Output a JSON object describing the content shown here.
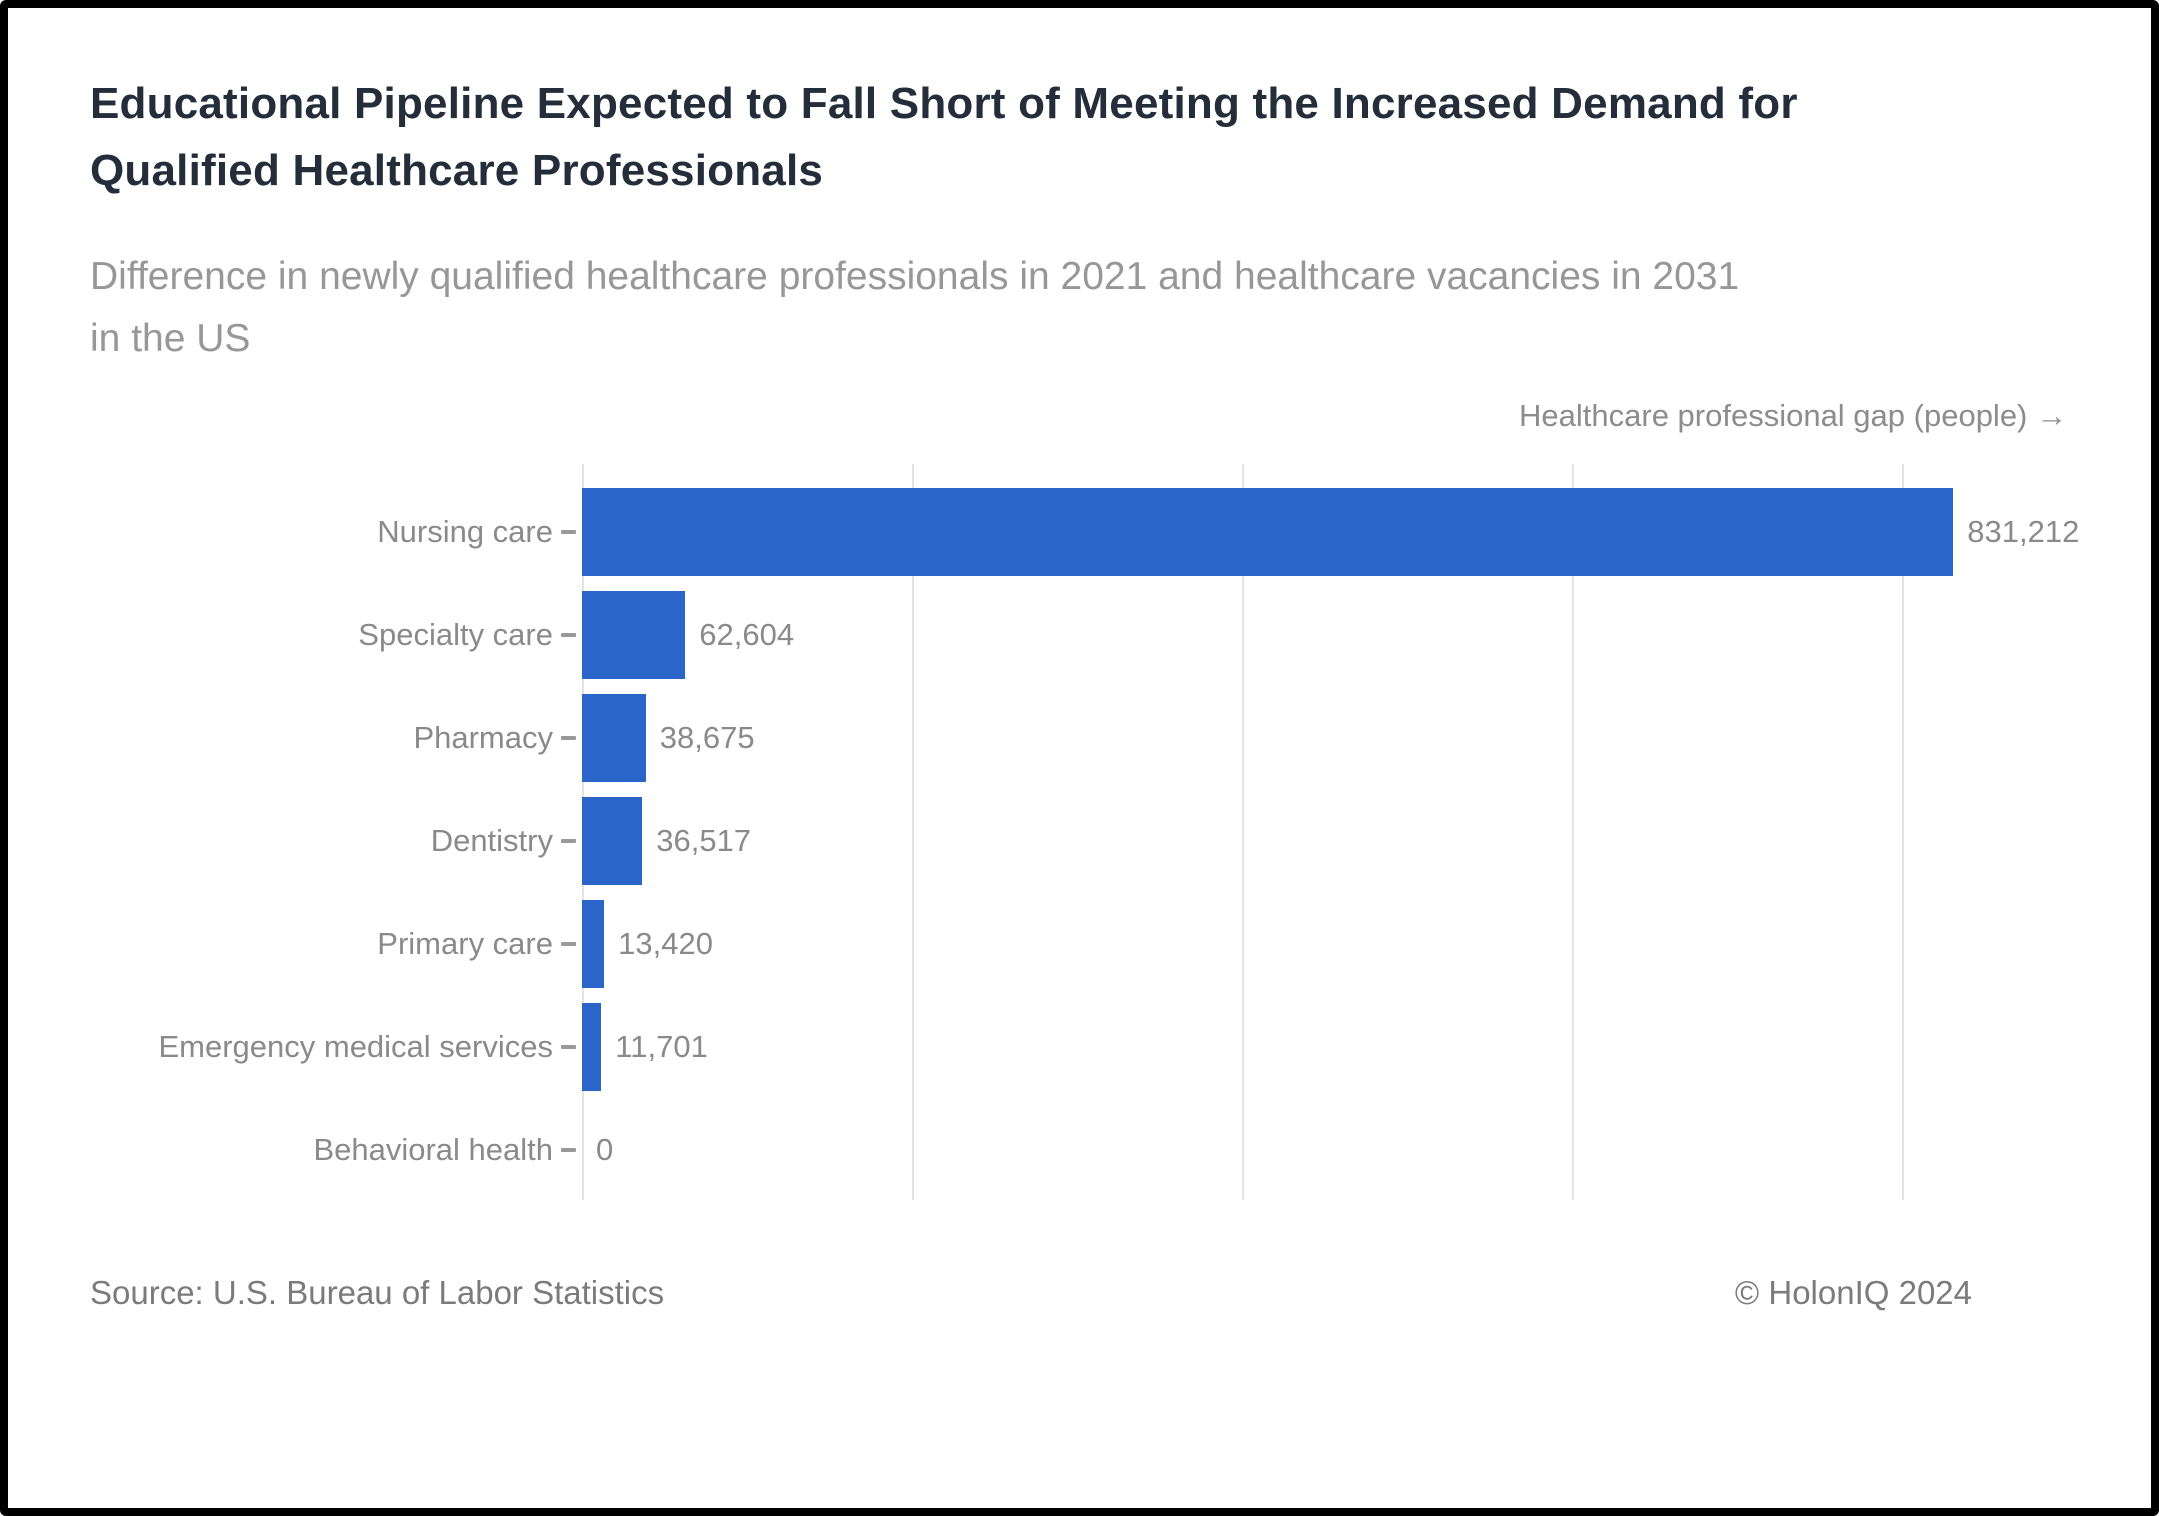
{
  "frame": {
    "background": "#ffffff",
    "border_color": "#000000"
  },
  "header": {
    "title_lines": [
      "Educational Pipeline Expected to Fall Short of Meeting the Increased Demand for",
      "Qualified Healthcare Professionals"
    ],
    "subtitle_lines": [
      "Difference in newly qualified healthcare professionals in 2021 and healthcare vacancies in 2031",
      "in the US"
    ]
  },
  "chart_data": {
    "type": "bar",
    "orientation": "horizontal",
    "title": "Educational Pipeline Expected to Fall Short of Meeting the Increased Demand for Qualified Healthcare Professionals",
    "subtitle": "Difference in newly qualified healthcare professionals in 2021 and healthcare vacancies in 2031 in the US",
    "xlabel": "Healthcare professional gap (people) →",
    "ylabel": "",
    "categories": [
      "Nursing care",
      "Specialty care",
      "Pharmacy",
      "Dentistry",
      "Primary care",
      "Emergency medical services",
      "Behavioral health"
    ],
    "values": [
      831212,
      62604,
      38675,
      36517,
      13420,
      11701,
      0
    ],
    "value_labels": [
      "831,212",
      "62,604",
      "38,675",
      "36,517",
      "13,420",
      "11,701",
      "0"
    ],
    "xlim": [
      0,
      925000
    ],
    "gridlines": [
      0,
      200000,
      400000,
      600000,
      800000
    ],
    "grid": true,
    "legend": false,
    "bar_color": "#2a65c9"
  },
  "footer": {
    "source": "Source: U.S. Bureau of Labor Statistics",
    "copyright": "© HolonIQ 2024"
  },
  "colors": {
    "title": "#242d3a",
    "subtitle": "#97979a",
    "axis_label": "#8c8c8c",
    "category_label": "#8a8a8a",
    "value_label": "#8a8a8a",
    "gridline": "#e4e4e4",
    "tick": "#999999",
    "bar": "#2a65c9",
    "footer": "#7b7b7b"
  }
}
